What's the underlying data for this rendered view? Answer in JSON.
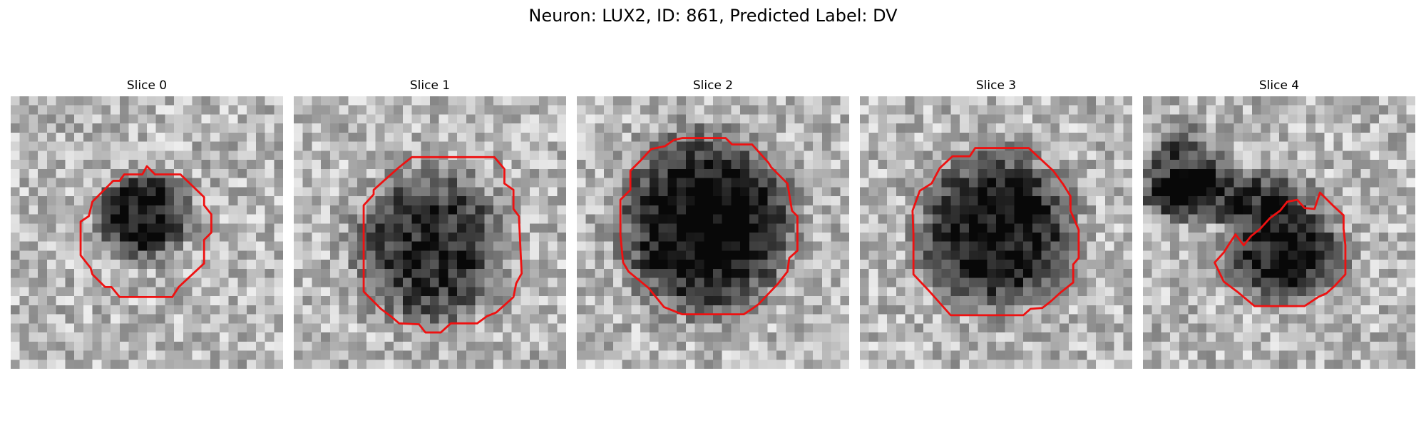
{
  "figure": {
    "title": "Neuron: LUX2, ID: 861, Predicted Label: DV"
  },
  "colors": {
    "outline": "#ee1111",
    "background": "#ffffff"
  },
  "slices": [
    {
      "title": "Slice 0"
    },
    {
      "title": "Slice 1"
    },
    {
      "title": "Slice 2"
    },
    {
      "title": "Slice 3"
    },
    {
      "title": "Slice 4"
    }
  ]
}
